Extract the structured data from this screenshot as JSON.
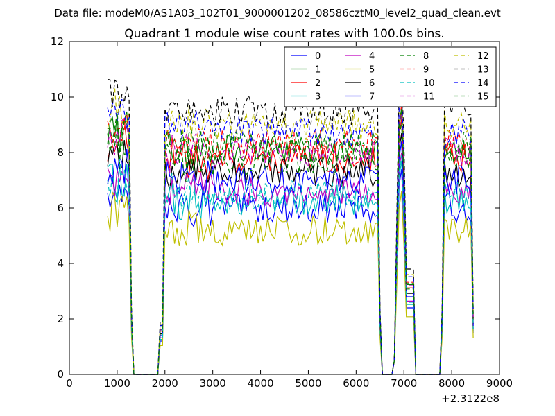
{
  "suptitle": "Data file: modeM0/AS1A03_102T01_9000001202_08586cztM0_level2_quad_clean.evt",
  "chart_data": {
    "type": "line",
    "title": "Quadrant 1 module wise count rates with 100.0s bins.",
    "xlabel": "",
    "ylabel": "",
    "x_offset_label": "+2.3122e8",
    "xlim": [
      0,
      9000
    ],
    "ylim": [
      0,
      12
    ],
    "x_ticks": [
      0,
      1000,
      2000,
      3000,
      4000,
      5000,
      6000,
      7000,
      8000,
      9000
    ],
    "y_ticks": [
      0,
      2,
      4,
      6,
      8,
      10,
      12
    ],
    "grid": false,
    "legend_position": "top-right",
    "segments": [
      {
        "x_start": 800,
        "x_end": 1300
      },
      {
        "x_start": 1900,
        "x_end": 6500
      },
      {
        "x_start": 6800,
        "x_end": 7200
      },
      {
        "x_start": 7800,
        "x_end": 8450
      }
    ],
    "series": [
      {
        "name": "0",
        "color": "#0000ff",
        "dash": "solid",
        "plateau": 6.0
      },
      {
        "name": "1",
        "color": "#008000",
        "dash": "solid",
        "plateau": 8.1
      },
      {
        "name": "2",
        "color": "#ff0000",
        "dash": "solid",
        "plateau": 7.8
      },
      {
        "name": "3",
        "color": "#00bfbf",
        "dash": "solid",
        "plateau": 6.3
      },
      {
        "name": "4",
        "color": "#bf00bf",
        "dash": "solid",
        "plateau": 6.6
      },
      {
        "name": "5",
        "color": "#bfbf00",
        "dash": "solid",
        "plateau": 5.2
      },
      {
        "name": "6",
        "color": "#000000",
        "dash": "solid",
        "plateau": 7.3
      },
      {
        "name": "7",
        "color": "#0000ff",
        "dash": "solid",
        "plateau": 7.0
      },
      {
        "name": "8",
        "color": "#008000",
        "dash": "dashed",
        "plateau": 7.7
      },
      {
        "name": "9",
        "color": "#ff0000",
        "dash": "dashed",
        "plateau": 8.3
      },
      {
        "name": "10",
        "color": "#00bfbf",
        "dash": "dashed",
        "plateau": 6.5
      },
      {
        "name": "11",
        "color": "#bf00bf",
        "dash": "dashed",
        "plateau": 8.0
      },
      {
        "name": "12",
        "color": "#bfbf00",
        "dash": "dashed",
        "plateau": 9.0
      },
      {
        "name": "13",
        "color": "#000000",
        "dash": "dashed",
        "plateau": 9.5
      },
      {
        "name": "14",
        "color": "#0000ff",
        "dash": "dashed",
        "plateau": 8.8
      },
      {
        "name": "15",
        "color": "#008000",
        "dash": "dashed",
        "plateau": 8.2
      }
    ]
  }
}
